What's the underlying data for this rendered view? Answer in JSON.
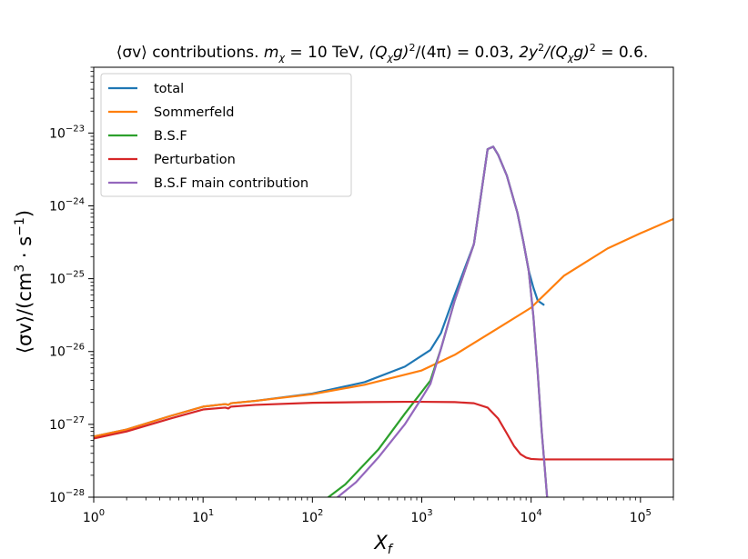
{
  "chart_data": {
    "type": "line",
    "title": "⟨σv⟩ contributions. m_χ = 10 TeV, (Q_χ g)²/(4π) = 0.03, 2y²/(Q_χ g)² = 0.6.",
    "title_parts": {
      "lead": "⟨σv⟩ contributions.",
      "mass": "m",
      "mass_sub": "χ",
      "mass_value": " = 10 TeV,",
      "coupling1": "(Q",
      "coupling1_sub": "χ",
      "coupling1_rest": "g)",
      "coupling1_sup": "2",
      "coupling1_value": "/(4π) = 0.03,",
      "coupling2": "2y",
      "coupling2_sup": "2",
      "coupling2_mid": "/(Q",
      "coupling2_sub": "χ",
      "coupling2_rest": "g)",
      "coupling2_sup2": "2",
      "coupling2_value": " = 0.6."
    },
    "xlabel": "X",
    "xlabel_sub": "f",
    "ylabel": "⟨σv⟩/(cm³ · s⁻¹)",
    "ylabel_parts": {
      "base": "⟨σv⟩/(cm",
      "sup1": "3",
      "mid": " · s",
      "sup2": "−1",
      "end": ")"
    },
    "xscale": "log",
    "yscale": "log",
    "xlim": [
      1,
      200000
    ],
    "ylim": [
      1e-28,
      8e-23
    ],
    "grid": false,
    "legend_position": "top-left",
    "x_ticks": [
      {
        "value": 1,
        "base": "10",
        "exp": "0"
      },
      {
        "value": 10,
        "base": "10",
        "exp": "1"
      },
      {
        "value": 100,
        "base": "10",
        "exp": "2"
      },
      {
        "value": 1000,
        "base": "10",
        "exp": "3"
      },
      {
        "value": 10000,
        "base": "10",
        "exp": "4"
      },
      {
        "value": 100000,
        "base": "10",
        "exp": "5"
      }
    ],
    "y_ticks": [
      {
        "value": 1e-28,
        "base": "10",
        "exp": "−28"
      },
      {
        "value": 1e-27,
        "base": "10",
        "exp": "−27"
      },
      {
        "value": 1e-26,
        "base": "10",
        "exp": "−26"
      },
      {
        "value": 1e-25,
        "base": "10",
        "exp": "−25"
      },
      {
        "value": 1e-24,
        "base": "10",
        "exp": "−24"
      },
      {
        "value": 1e-23,
        "base": "10",
        "exp": "−23"
      }
    ],
    "series": [
      {
        "name": "total",
        "color": "#1f77b4",
        "x": [
          1,
          2,
          5,
          10,
          16,
          17,
          18,
          30,
          100,
          300,
          700,
          1200,
          1500,
          2000,
          3000,
          4000,
          4500,
          5000,
          6000,
          7500,
          8500,
          9500,
          10500,
          11500,
          13000
        ],
        "y": [
          6.8e-28,
          8.5e-28,
          1.3e-27,
          1.75e-27,
          1.9e-27,
          1.85e-27,
          1.95e-27,
          2.1e-27,
          2.65e-27,
          3.8e-27,
          6.2e-27,
          1.05e-26,
          1.8e-26,
          6e-26,
          3e-25,
          6e-24,
          6.5e-24,
          5e-24,
          2.6e-24,
          8e-25,
          3.2e-25,
          1.3e-25,
          7.5e-26,
          5e-26,
          4.4e-26
        ]
      },
      {
        "name": "Sommerfeld",
        "color": "#ff7f0e",
        "x": [
          1,
          2,
          5,
          10,
          16,
          17,
          18,
          30,
          100,
          300,
          1000,
          2000,
          5000,
          10000,
          20000,
          50000,
          100000,
          200000
        ],
        "y": [
          6.8e-28,
          8.5e-28,
          1.3e-27,
          1.75e-27,
          1.9e-27,
          1.85e-27,
          1.95e-27,
          2.1e-27,
          2.6e-27,
          3.5e-27,
          5.5e-27,
          9e-27,
          2.1e-26,
          4e-26,
          1.1e-25,
          2.6e-25,
          4.2e-25,
          6.6e-25
        ]
      },
      {
        "name": "B.S.F",
        "color": "#2ca02c",
        "x": [
          140,
          200,
          400,
          700,
          1000,
          1200,
          1500,
          2000,
          3000,
          4000,
          4500,
          5000,
          6000,
          7500,
          8500,
          9500,
          10500,
          11500,
          12500,
          13200,
          14000
        ],
        "y": [
          1e-28,
          1.5e-28,
          4.5e-28,
          1.4e-27,
          2.8e-27,
          4e-27,
          1.1e-26,
          5e-26,
          3e-25,
          6e-24,
          6.5e-24,
          5e-24,
          2.6e-24,
          8e-25,
          3.2e-25,
          1.3e-25,
          3e-26,
          5e-27,
          8e-28,
          3e-28,
          1e-28
        ]
      },
      {
        "name": "Perturbation",
        "color": "#d62728",
        "x": [
          1,
          2,
          5,
          10,
          16,
          17,
          18,
          30,
          100,
          300,
          700,
          1000,
          2000,
          3000,
          4000,
          5000,
          6000,
          7000,
          8000,
          9000,
          10000,
          12000,
          20000,
          100000,
          200000
        ],
        "y": [
          6.4e-28,
          8e-28,
          1.2e-27,
          1.6e-27,
          1.7e-27,
          1.65e-27,
          1.75e-27,
          1.85e-27,
          1.98e-27,
          2.02e-27,
          2.04e-27,
          2.04e-27,
          2.02e-27,
          1.95e-27,
          1.7e-27,
          1.2e-27,
          7.5e-28,
          5e-28,
          3.9e-28,
          3.5e-28,
          3.35e-28,
          3.3e-28,
          3.3e-28,
          3.3e-28,
          3.3e-28
        ]
      },
      {
        "name": "B.S.F main contribution",
        "color": "#9467bd",
        "x": [
          170,
          250,
          400,
          700,
          1000,
          1200,
          1500,
          2000,
          3000,
          4000,
          4500,
          5000,
          6000,
          7500,
          8500,
          9500,
          10500,
          11500,
          12500,
          13200,
          14000
        ],
        "y": [
          1e-28,
          1.6e-28,
          3.5e-28,
          1e-27,
          2.3e-27,
          3.6e-27,
          1.1e-26,
          5e-26,
          3e-25,
          6e-24,
          6.5e-24,
          5e-24,
          2.6e-24,
          8e-25,
          3.2e-25,
          1.3e-25,
          3e-26,
          5e-27,
          8e-28,
          3e-28,
          1e-28
        ]
      }
    ]
  }
}
